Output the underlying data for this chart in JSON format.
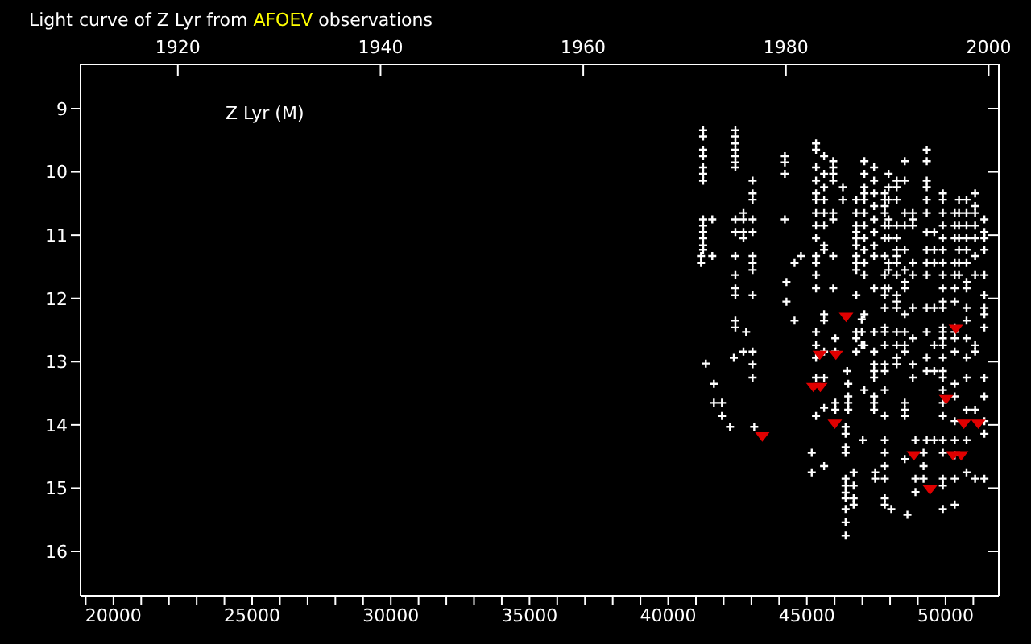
{
  "chart_data": {
    "type": "scatter",
    "title": "Light curve of Z Lyr from AFOEV observations",
    "annotations": [
      "Z Lyr (M)"
    ],
    "xlim": [
      18814,
      51919
    ],
    "xticks": [
      {
        "value": 19000,
        "label": null
      },
      {
        "value": 20000,
        "label": "20000"
      },
      {
        "value": 21000,
        "label": null
      },
      {
        "value": 22000,
        "label": null
      },
      {
        "value": 23000,
        "label": null
      },
      {
        "value": 24000,
        "label": null
      },
      {
        "value": 25000,
        "label": "25000"
      },
      {
        "value": 26000,
        "label": null
      },
      {
        "value": 27000,
        "label": null
      },
      {
        "value": 28000,
        "label": null
      },
      {
        "value": 29000,
        "label": null
      },
      {
        "value": 30000,
        "label": "30000"
      },
      {
        "value": 31000,
        "label": null
      },
      {
        "value": 32000,
        "label": null
      },
      {
        "value": 33000,
        "label": null
      },
      {
        "value": 34000,
        "label": null
      },
      {
        "value": 35000,
        "label": "35000"
      },
      {
        "value": 36000,
        "label": null
      },
      {
        "value": 37000,
        "label": null
      },
      {
        "value": 38000,
        "label": null
      },
      {
        "value": 39000,
        "label": null
      },
      {
        "value": 40000,
        "label": "40000"
      },
      {
        "value": 41000,
        "label": null
      },
      {
        "value": 42000,
        "label": null
      },
      {
        "value": 43000,
        "label": null
      },
      {
        "value": 44000,
        "label": null
      },
      {
        "value": 45000,
        "label": "45000"
      },
      {
        "value": 46000,
        "label": null
      },
      {
        "value": 47000,
        "label": null
      },
      {
        "value": 48000,
        "label": null
      },
      {
        "value": 49000,
        "label": null
      },
      {
        "value": 50000,
        "label": "50000"
      },
      {
        "value": 51000,
        "label": null
      }
    ],
    "x2lim": [
      1910.4,
      2001.0
    ],
    "x2ticks": [
      1920,
      1940,
      1960,
      1980,
      2000
    ],
    "ylim": [
      16.7,
      8.3
    ],
    "yticks": [
      9,
      10,
      11,
      12,
      13,
      14,
      15,
      16
    ],
    "series": [
      {
        "color": "#ffffff",
        "marker": "cross",
        "x": [
          41183,
          41183,
          41260,
          41260,
          41260,
          41260,
          41260,
          41260,
          41260,
          41260,
          41260,
          41260,
          41260,
          41260,
          41260,
          41357,
          41589,
          41589,
          41648,
          41648,
          41938,
          41938,
          42229,
          42365,
          42423,
          42423,
          42423,
          42423,
          42423,
          42423,
          42423,
          42423,
          42423,
          42423,
          42423,
          42423,
          42423,
          42423,
          42423,
          42714,
          42714,
          42714,
          42714,
          42714,
          42810,
          43043,
          43043,
          43043,
          43043,
          43043,
          43043,
          43043,
          43043,
          43043,
          43043,
          43043,
          43043,
          43101,
          44206,
          44206,
          44206,
          44206,
          44264,
          44264,
          44555,
          44555,
          44787,
          45175,
          45175,
          45330,
          45330,
          45330,
          45330,
          45330,
          45330,
          45330,
          45330,
          45330,
          45330,
          45330,
          45330,
          45330,
          45330,
          45330,
          45330,
          45330,
          45330,
          45621,
          45621,
          45621,
          45621,
          45621,
          45621,
          45621,
          45621,
          45621,
          45621,
          45621,
          45621,
          45621,
          45621,
          45950,
          45950,
          45950,
          45950,
          45950,
          45950,
          45950,
          45950,
          46027,
          46027,
          46027,
          46027,
          46299,
          46299,
          46396,
          46396,
          46396,
          46396,
          46396,
          46396,
          46396,
          46396,
          46396,
          46396,
          46396,
          46454,
          46493,
          46493,
          46493,
          46493,
          46686,
          46686,
          46686,
          46686,
          46783,
          46783,
          46783,
          46783,
          46783,
          46783,
          46783,
          46783,
          46783,
          46783,
          46783,
          46783,
          46783,
          46977,
          46977,
          46977,
          47016,
          47074,
          47074,
          47074,
          47074,
          47074,
          47074,
          47074,
          47074,
          47074,
          47074,
          47074,
          47074,
          47074,
          47074,
          47423,
          47423,
          47423,
          47423,
          47423,
          47423,
          47423,
          47423,
          47423,
          47423,
          47423,
          47423,
          47423,
          47423,
          47423,
          47423,
          47423,
          47462,
          47462,
          47810,
          47810,
          47810,
          47810,
          47810,
          47810,
          47810,
          47810,
          47810,
          47810,
          47810,
          47810,
          47810,
          47810,
          47810,
          47810,
          47810,
          47810,
          47810,
          47810,
          47810,
          47810,
          47810,
          47810,
          47946,
          47946,
          47946,
          47946,
          47946,
          47946,
          47946,
          47946,
          47946,
          48043,
          48237,
          48237,
          48237,
          48237,
          48237,
          48237,
          48237,
          48237,
          48237,
          48237,
          48237,
          48237,
          48237,
          48237,
          48237,
          48237,
          48528,
          48528,
          48528,
          48528,
          48528,
          48528,
          48528,
          48528,
          48528,
          48528,
          48528,
          48528,
          48528,
          48528,
          48528,
          48528,
          48625,
          48818,
          48818,
          48818,
          48818,
          48818,
          48818,
          48818,
          48818,
          48818,
          48915,
          48915,
          48915,
          49206,
          49206,
          49206,
          49322,
          49322,
          49322,
          49322,
          49322,
          49322,
          49322,
          49322,
          49322,
          49322,
          49322,
          49322,
          49322,
          49322,
          49322,
          49594,
          49594,
          49594,
          49594,
          49594,
          49594,
          49594,
          49903,
          49903,
          49903,
          49903,
          49903,
          49903,
          49903,
          49903,
          49903,
          49903,
          49903,
          49903,
          49903,
          49903,
          49903,
          49903,
          49903,
          49903,
          49903,
          49903,
          49903,
          49903,
          49903,
          49903,
          49903,
          49903,
          50330,
          50330,
          50330,
          50330,
          50330,
          50330,
          50330,
          50330,
          50330,
          50330,
          50330,
          50330,
          50330,
          50330,
          50330,
          50330,
          50330,
          50330,
          50485,
          50485,
          50485,
          50485,
          50485,
          50485,
          50485,
          50756,
          50756,
          50756,
          50756,
          50756,
          50756,
          50756,
          50756,
          50756,
          50756,
          50756,
          50756,
          50756,
          50756,
          50756,
          50756,
          51066,
          51066,
          51066,
          51066,
          51066,
          51066,
          51066,
          51066,
          51066,
          51066,
          51066,
          51400,
          51400,
          51400,
          51400,
          51400,
          51400,
          51400,
          51400,
          51400,
          51400,
          51400,
          51400,
          51400,
          51400
        ],
        "values": [
          11.33,
          11.44,
          9.34,
          9.44,
          9.65,
          9.75,
          9.93,
          10.03,
          10.14,
          10.75,
          10.85,
          10.95,
          11.05,
          11.16,
          11.23,
          13.03,
          10.75,
          11.33,
          13.35,
          13.65,
          13.65,
          13.86,
          14.03,
          12.94,
          9.34,
          9.44,
          9.55,
          9.65,
          9.75,
          9.85,
          9.93,
          10.75,
          10.95,
          11.33,
          11.63,
          11.84,
          11.95,
          12.35,
          12.46,
          10.65,
          10.75,
          10.95,
          11.05,
          12.84,
          12.53,
          10.14,
          10.34,
          10.44,
          10.75,
          10.95,
          11.33,
          11.44,
          11.55,
          11.95,
          12.84,
          13.04,
          13.25,
          14.03,
          9.75,
          9.85,
          10.03,
          10.75,
          11.74,
          12.05,
          11.44,
          12.35,
          11.33,
          14.44,
          14.75,
          9.55,
          9.65,
          9.93,
          10.14,
          10.34,
          10.44,
          10.65,
          10.85,
          11.05,
          11.33,
          11.44,
          11.63,
          11.84,
          12.53,
          12.74,
          12.94,
          13.25,
          13.86,
          9.75,
          10.03,
          10.24,
          10.44,
          10.65,
          10.85,
          11.16,
          11.23,
          12.25,
          12.35,
          12.84,
          13.25,
          13.73,
          14.65,
          9.83,
          9.93,
          10.03,
          10.14,
          10.65,
          10.75,
          11.33,
          11.84,
          12.63,
          12.84,
          13.65,
          13.76,
          10.24,
          10.44,
          14.03,
          14.14,
          14.35,
          14.44,
          14.85,
          14.96,
          15.07,
          15.16,
          15.33,
          15.54,
          15.75,
          13.15,
          13.35,
          13.55,
          13.65,
          13.76,
          14.75,
          14.96,
          15.16,
          15.26,
          10.44,
          10.65,
          10.85,
          10.95,
          11.05,
          11.16,
          11.33,
          11.44,
          11.55,
          11.95,
          12.53,
          12.63,
          12.84,
          12.33,
          12.53,
          12.74,
          14.24,
          9.83,
          10.03,
          10.24,
          10.34,
          10.44,
          10.65,
          10.85,
          11.05,
          11.23,
          11.44,
          11.63,
          12.25,
          12.74,
          13.45,
          9.93,
          10.14,
          10.34,
          10.54,
          10.75,
          10.95,
          11.16,
          11.33,
          11.84,
          12.53,
          12.84,
          13.04,
          13.15,
          13.25,
          13.55,
          13.65,
          13.76,
          14.75,
          14.85,
          10.34,
          10.44,
          10.54,
          10.65,
          10.85,
          11.05,
          11.33,
          11.63,
          11.84,
          11.95,
          12.15,
          12.46,
          12.53,
          12.74,
          13.04,
          13.15,
          13.45,
          13.86,
          14.24,
          14.44,
          14.65,
          14.85,
          15.16,
          15.26,
          10.03,
          10.24,
          10.44,
          10.75,
          10.85,
          11.05,
          11.44,
          11.55,
          11.84,
          15.33,
          10.14,
          10.24,
          10.44,
          10.85,
          11.05,
          11.23,
          11.33,
          11.44,
          11.63,
          11.95,
          12.05,
          12.15,
          12.53,
          12.74,
          12.94,
          13.04,
          9.83,
          10.14,
          10.65,
          10.85,
          11.23,
          11.55,
          11.74,
          11.84,
          12.25,
          12.53,
          12.74,
          12.84,
          13.65,
          13.76,
          13.86,
          14.54,
          15.42,
          10.65,
          10.75,
          10.85,
          11.44,
          11.63,
          12.15,
          12.63,
          13.04,
          13.25,
          14.24,
          14.85,
          15.06,
          14.44,
          14.65,
          14.85,
          9.65,
          9.83,
          10.14,
          10.24,
          10.44,
          10.65,
          10.95,
          11.23,
          11.44,
          11.63,
          12.15,
          12.53,
          12.94,
          13.15,
          14.24,
          10.95,
          11.23,
          11.44,
          12.15,
          12.74,
          13.15,
          14.24,
          10.34,
          10.44,
          10.65,
          10.85,
          11.05,
          11.23,
          11.44,
          11.63,
          11.84,
          12.05,
          12.15,
          12.46,
          12.53,
          12.63,
          12.74,
          12.94,
          13.15,
          13.25,
          13.45,
          13.65,
          13.86,
          14.24,
          14.44,
          14.85,
          14.96,
          15.33,
          10.65,
          10.85,
          11.05,
          11.44,
          11.63,
          11.84,
          12.05,
          12.46,
          12.53,
          12.63,
          12.84,
          13.35,
          13.55,
          13.94,
          14.24,
          14.48,
          14.85,
          15.26,
          10.44,
          10.65,
          10.85,
          11.05,
          11.23,
          11.44,
          11.63,
          10.44,
          10.65,
          10.85,
          11.05,
          11.23,
          11.44,
          11.74,
          11.84,
          12.15,
          12.35,
          12.63,
          12.94,
          13.25,
          13.76,
          14.24,
          14.75,
          10.34,
          10.54,
          10.65,
          10.85,
          11.05,
          11.33,
          11.63,
          12.74,
          12.84,
          13.76,
          14.85,
          10.75,
          10.95,
          11.05,
          11.23,
          11.63,
          11.95,
          12.15,
          12.25,
          12.46,
          13.25,
          13.55,
          13.94,
          14.14,
          14.85
        ]
      },
      {
        "color": "#e00000",
        "marker": "triangle",
        "x": [
          43392,
          45233,
          45466,
          45485,
          46008,
          46047,
          46415,
          48857,
          49439,
          50020,
          50272,
          50369,
          50563,
          50659,
          51183
        ],
        "values": [
          14.18,
          13.4,
          12.89,
          13.4,
          13.98,
          12.89,
          12.29,
          14.48,
          15.02,
          13.59,
          14.48,
          12.48,
          14.48,
          13.98,
          13.98
        ]
      }
    ]
  }
}
